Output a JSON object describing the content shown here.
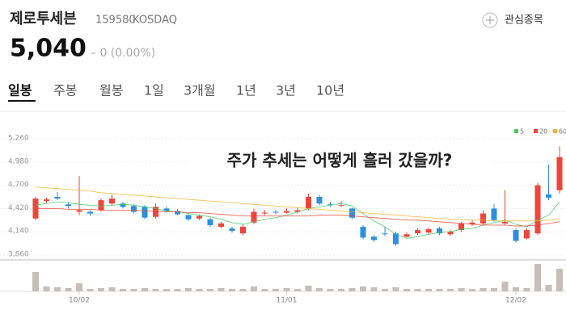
{
  "header": {
    "name": "제로투세븐",
    "code": "159580",
    "market": "KOSDAQ",
    "watch": "관심종목",
    "price": "5,040",
    "change": "0 (0.00%)"
  },
  "tabs": [
    "일봉",
    "주봉",
    "월봉",
    "1일",
    "3개월",
    "1년",
    "3년",
    "10년"
  ],
  "chart_data": {
    "type": "candlestick",
    "annotation": "주가 추세는 어떻게 흘러 갔을까?",
    "categories": [
      null,
      null,
      null,
      null,
      "10/02",
      null,
      null,
      null,
      null,
      null,
      null,
      null,
      null,
      null,
      null,
      null,
      null,
      null,
      null,
      null,
      null,
      null,
      null,
      "11/01",
      null,
      null,
      null,
      null,
      null,
      null,
      null,
      null,
      null,
      null,
      null,
      null,
      null,
      null,
      null,
      null,
      null,
      null,
      null,
      null,
      "12/02",
      null,
      null,
      null,
      null
    ],
    "open": [
      4300,
      4510,
      4560,
      4470,
      4380,
      4380,
      4400,
      4480,
      4480,
      4450,
      4440,
      4320,
      4420,
      4390,
      4340,
      4300,
      4290,
      4200,
      4180,
      4120,
      4250,
      4360,
      4380,
      4370,
      4380,
      4420,
      4560,
      4470,
      4460,
      4420,
      4200,
      4080,
      4120,
      4120,
      4080,
      4120,
      4130,
      4180,
      4110,
      4160,
      4230,
      4240,
      4420,
      4240,
      4160,
      4060,
      4120,
      4590,
      4640
    ],
    "high": [
      4560,
      4550,
      4620,
      4490,
      4810,
      4400,
      4540,
      4590,
      4500,
      4470,
      4460,
      4480,
      4440,
      4410,
      4360,
      4350,
      4310,
      4260,
      4200,
      4230,
      4420,
      4400,
      4400,
      4420,
      4430,
      4600,
      4580,
      4500,
      4510,
      4430,
      4220,
      4100,
      4200,
      4140,
      4130,
      4180,
      4190,
      4200,
      4160,
      4260,
      4280,
      4400,
      4470,
      4640,
      4180,
      4180,
      4730,
      4950,
      5170
    ],
    "low": [
      4280,
      4490,
      4520,
      4420,
      4340,
      4330,
      4380,
      4460,
      4420,
      4360,
      4290,
      4300,
      4370,
      4340,
      4270,
      4280,
      4200,
      4180,
      4130,
      4100,
      4230,
      4340,
      4350,
      4360,
      4360,
      4400,
      4460,
      4440,
      4440,
      4290,
      4050,
      4020,
      4090,
      3970,
      4070,
      4100,
      4110,
      4100,
      4090,
      4140,
      4210,
      4220,
      4260,
      4220,
      4010,
      4050,
      4100,
      4520,
      4600
    ],
    "close": [
      4540,
      4530,
      4540,
      4450,
      4400,
      4360,
      4520,
      4540,
      4440,
      4380,
      4310,
      4440,
      4390,
      4350,
      4290,
      4330,
      4220,
      4240,
      4150,
      4200,
      4380,
      4370,
      4370,
      4390,
      4400,
      4560,
      4480,
      4460,
      4460,
      4310,
      4070,
      4040,
      4110,
      3990,
      4110,
      4160,
      4170,
      4120,
      4140,
      4240,
      4250,
      4360,
      4280,
      4260,
      4030,
      4160,
      4700,
      4550,
      5040
    ],
    "volume": [
      24,
      6,
      5,
      4,
      10,
      3,
      4,
      5,
      3,
      3,
      4,
      3,
      3,
      3,
      4,
      3,
      3,
      4,
      3,
      3,
      6,
      3,
      3,
      4,
      3,
      7,
      4,
      3,
      3,
      4,
      6,
      5,
      3,
      5,
      3,
      3,
      3,
      3,
      3,
      4,
      3,
      4,
      4,
      12,
      5,
      4,
      34,
      8,
      28
    ],
    "series": [
      {
        "name": "5",
        "color": "#43c95a",
        "values": [
          4460,
          4480,
          4500,
          4490,
          4470,
          4460,
          4450,
          4460,
          4470,
          4460,
          4440,
          4420,
          4390,
          4380,
          4360,
          4340,
          4320,
          4290,
          4250,
          4230,
          4260,
          4290,
          4310,
          4340,
          4380,
          4420,
          4440,
          4460,
          4480,
          4450,
          4360,
          4270,
          4200,
          4110,
          4060,
          4080,
          4110,
          4130,
          4140,
          4170,
          4180,
          4220,
          4250,
          4280,
          4230,
          4200,
          4280,
          4340,
          4500
        ]
      },
      {
        "name": "20",
        "color": "#f0443a",
        "values": [
          4420,
          4420,
          4420,
          4410,
          4410,
          4410,
          4400,
          4400,
          4400,
          4400,
          4390,
          4390,
          4380,
          4380,
          4370,
          4370,
          4360,
          4350,
          4340,
          4330,
          4330,
          4330,
          4330,
          4330,
          4330,
          4330,
          4340,
          4340,
          4340,
          4330,
          4320,
          4310,
          4300,
          4290,
          4280,
          4280,
          4270,
          4260,
          4250,
          4240,
          4230,
          4220,
          4220,
          4220,
          4210,
          4210,
          4220,
          4240,
          4260
        ]
      },
      {
        "name": "60",
        "color": "#f5b335",
        "values": [
          4680,
          4670,
          4660,
          4650,
          4640,
          4630,
          4610,
          4600,
          4590,
          4580,
          4570,
          4560,
          4550,
          4540,
          4530,
          4520,
          4510,
          4500,
          4490,
          4480,
          4470,
          4460,
          4450,
          4440,
          4430,
          4420,
          4410,
          4400,
          4390,
          4380,
          4370,
          4360,
          4350,
          4340,
          4330,
          4320,
          4310,
          4300,
          4290,
          4290,
          4280,
          4280,
          4270,
          4270,
          4270,
          4270,
          4270,
          4280,
          4290
        ]
      }
    ],
    "up_color": "#f0443a",
    "down_color": "#2d8fdd",
    "volume_color": "#c8beb9",
    "ylim": [
      3860,
      5260
    ],
    "yticks": [
      {
        "value": 3860,
        "label": "3,860"
      },
      {
        "value": 4140,
        "label": "4,140"
      },
      {
        "value": 4420,
        "label": "4,420"
      },
      {
        "value": 4700,
        "label": "4,700"
      },
      {
        "value": 4980,
        "label": "4,980"
      },
      {
        "value": 5260,
        "label": "5,260"
      }
    ],
    "vlim": [
      0,
      36
    ],
    "grid": true
  }
}
